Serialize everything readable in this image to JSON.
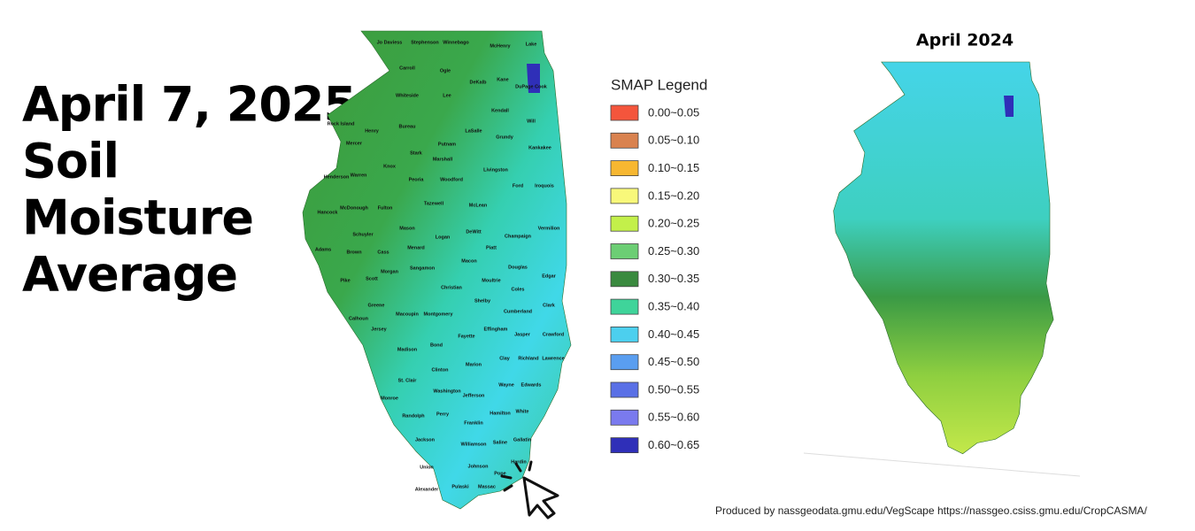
{
  "title_lines": [
    "April 7, 2025",
    "Soil",
    "Moisture",
    "Average"
  ],
  "legend": {
    "title": "SMAP Legend",
    "items": [
      {
        "label": "0.00~0.05",
        "color": "#f4553c"
      },
      {
        "label": "0.05~0.10",
        "color": "#d9824f"
      },
      {
        "label": "0.10~0.15",
        "color": "#f7b731"
      },
      {
        "label": "0.15~0.20",
        "color": "#f8f87a"
      },
      {
        "label": "0.20~0.25",
        "color": "#c3f04a"
      },
      {
        "label": "0.25~0.30",
        "color": "#6cce74"
      },
      {
        "label": "0.30~0.35",
        "color": "#3a8a3f"
      },
      {
        "label": "0.35~0.40",
        "color": "#3fd49a"
      },
      {
        "label": "0.40~0.45",
        "color": "#4ccfee"
      },
      {
        "label": "0.45~0.50",
        "color": "#5a9ef0"
      },
      {
        "label": "0.50~0.55",
        "color": "#5a70e6"
      },
      {
        "label": "0.55~0.60",
        "color": "#7a7aee"
      },
      {
        "label": "0.60~0.65",
        "color": "#2f2fb8"
      }
    ]
  },
  "left_map": {
    "county_labels": [
      "Jo Daviess",
      "Stephenson",
      "Winnebago",
      "McHenry",
      "Lake",
      "Carroll",
      "Ogle",
      "DeKalb",
      "Kane",
      "DuPage Cook",
      "Whiteside",
      "Lee",
      "Kendall",
      "Will",
      "Rock Island",
      "Henry",
      "Bureau",
      "LaSalle",
      "Grundy",
      "Kankakee",
      "Mercer",
      "Putnam",
      "Stark",
      "Marshall",
      "Livingston",
      "Warren",
      "Knox",
      "Peoria",
      "Woodford",
      "Iroquois",
      "Ford",
      "Henderson",
      "McLean",
      "Tazewell",
      "McDonough",
      "Fulton",
      "Hancock",
      "Mason",
      "Logan",
      "DeWitt",
      "Champaign",
      "Vermilion",
      "Schuyler",
      "Adams",
      "Brown",
      "Cass",
      "Piatt",
      "Menard",
      "Sangamon",
      "Macon",
      "Douglas",
      "Edgar",
      "Pike",
      "Scott",
      "Morgan",
      "Christian",
      "Moultrie",
      "Coles",
      "Shelby",
      "Clark",
      "Greene",
      "Macoupin",
      "Montgomery",
      "Cumberland",
      "Calhoun",
      "Jersey",
      "Effingham",
      "Jasper",
      "Crawford",
      "Bond",
      "Fayette",
      "Madison",
      "Clay",
      "Richland",
      "Lawrence",
      "Clinton",
      "Marion",
      "St. Clair",
      "Washington",
      "Wayne",
      "Edwards",
      "Monroe",
      "Jefferson",
      "Randolph",
      "Perry",
      "Hamilton",
      "White",
      "Franklin",
      "Jackson",
      "Williamson",
      "Saline",
      "Gallatin",
      "Union",
      "Johnson",
      "Pope",
      "Hardin",
      "Alexander",
      "Pulaski",
      "Massac"
    ]
  },
  "right_map": {
    "title": "April 2024"
  },
  "credits": [
    "Produced by nassgeodata.gmu.edu/VegScape",
    "https://nassgeo.csiss.gmu.edu/CropCASMA/"
  ]
}
